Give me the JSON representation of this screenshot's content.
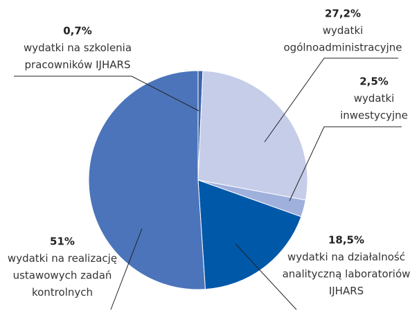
{
  "chart_data": {
    "type": "pie",
    "categories": [
      [
        "wydatki na szkolenia",
        "pracowników IJHARS"
      ],
      [
        "wydatki",
        "ogólnoadministracyjne"
      ],
      [
        "wydatki",
        "inwestycyjne"
      ],
      [
        "wydatki na działalność",
        "analityczną laboratoriów",
        "IJHARS"
      ],
      [
        "wydatki na realizację",
        "ustawowych zadań",
        "kontrolnych"
      ]
    ],
    "values": [
      0.7,
      27.2,
      2.5,
      18.5,
      51
    ],
    "value_labels": [
      "0,7%",
      "27,2%",
      "2,5%",
      "18,5%",
      "51%"
    ],
    "colors": [
      "#3c64ad",
      "#c6cde9",
      "#9fb0dc",
      "#0058a9",
      "#4b74ba"
    ]
  }
}
